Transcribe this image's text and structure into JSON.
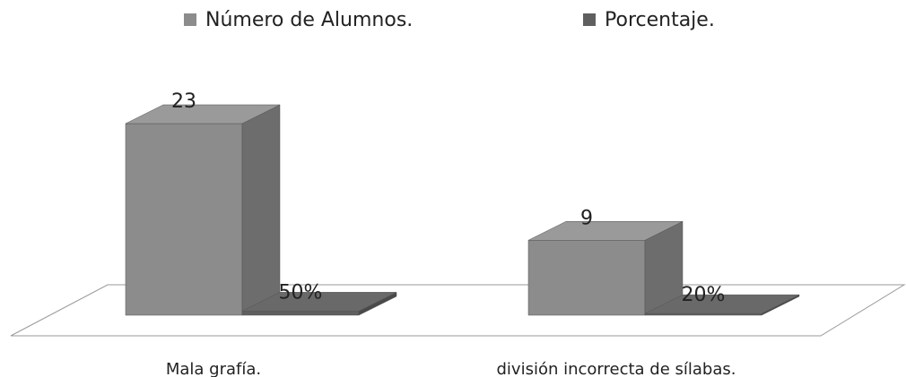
{
  "chart_data": {
    "type": "bar3d",
    "categories": [
      "Mala grafía.",
      "división incorrecta de sílabas."
    ],
    "series": [
      {
        "name": "Número de Alumnos.",
        "color": "#8c8c8c",
        "values": [
          23,
          9
        ]
      },
      {
        "name": "Porcentaje.",
        "color": "#5f5f5f",
        "values": [
          0.5,
          0.2
        ],
        "value_labels": [
          "50%",
          "20%"
        ]
      }
    ],
    "ylim": [
      0,
      25
    ],
    "legend": "top"
  }
}
